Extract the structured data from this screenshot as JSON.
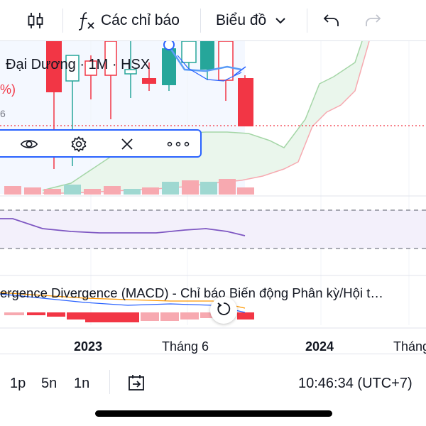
{
  "toolbar": {
    "indicators_label": "Các chỉ báo",
    "chart_type_label": "Biểu đồ",
    "icons": [
      "candles-icon",
      "function-icon",
      "chevron-down-icon",
      "undo-icon",
      "redo-icon"
    ]
  },
  "legend": {
    "symbol_info": "Đại Dương · 1M · HSX",
    "change_fragment": "%)",
    "value_fragment": "6"
  },
  "indicator_toolbar": {
    "icons": [
      "eye-icon",
      "gear-icon",
      "close-icon",
      "more-icon"
    ]
  },
  "macd": {
    "label": "ergence Divergence (MACD) - Chỉ báo Biến động Phân kỳ/Hội t…"
  },
  "time_axis": {
    "labels": [
      "2023",
      "Tháng 6",
      "2024",
      "Tháng"
    ]
  },
  "bottom": {
    "intervals": [
      "1p",
      "5n",
      "1n"
    ],
    "clock": "10:46:34 (UTC+7)"
  },
  "colors": {
    "up": "#26a69a",
    "down": "#f23645",
    "up_light": "#9fd8d1",
    "down_light": "#f7a9b0",
    "accent": "#2962ff",
    "rsi_line": "#7e57c2",
    "rsi_band": "#f3f0fb"
  }
}
